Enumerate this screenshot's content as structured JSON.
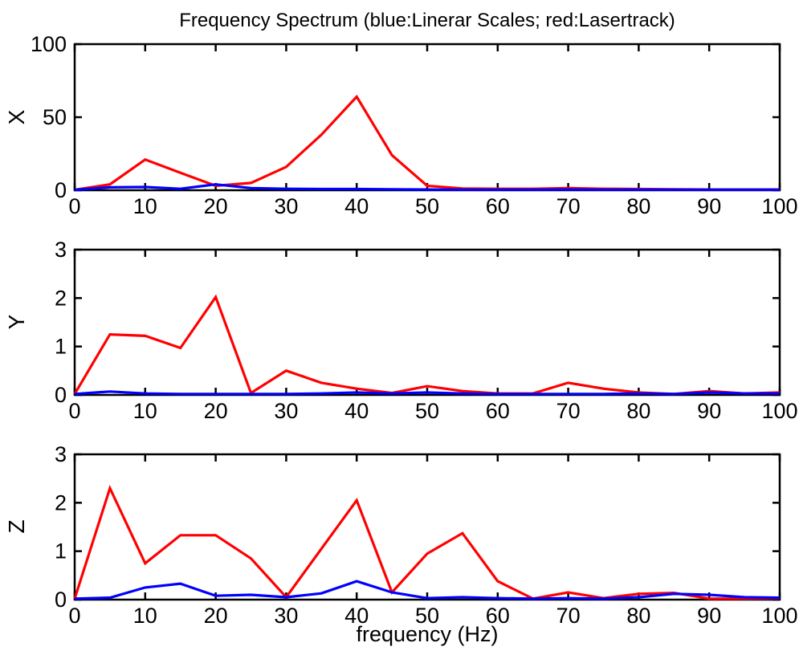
{
  "figure": {
    "background": "#ffffff",
    "axis_color": "#000000"
  },
  "chart_data": {
    "type": "line",
    "title": "Frequency Spectrum (blue:Linerar Scales; red:Lasertrack)",
    "xlabel": "frequency (Hz)",
    "xlim": [
      0,
      100
    ],
    "xticks": [
      0,
      10,
      20,
      30,
      40,
      50,
      60,
      70,
      80,
      90,
      100
    ],
    "x": [
      0,
      5,
      10,
      15,
      20,
      25,
      30,
      35,
      40,
      45,
      50,
      55,
      60,
      65,
      70,
      75,
      80,
      85,
      90,
      95,
      100
    ],
    "grid": false,
    "legend_position": "none (encoded in title: blue = Linerar Scales, red = Lasertrack)",
    "colors": {
      "lasertrack_red": "#ff0000",
      "linerar_scales_blue": "#0000ff"
    },
    "subplots": [
      {
        "ylabel": "X",
        "ylim": [
          0,
          100
        ],
        "yticks": [
          0,
          50,
          100
        ],
        "series": [
          {
            "name": "Lasertrack",
            "color": "#ff0000",
            "values": [
              0.3,
              4,
              21,
              12,
              3,
              5,
              16,
              38,
              64,
              24,
              3,
              1.2,
              1,
              1,
              1.5,
              1,
              0.8,
              0.6,
              0.5,
              0.5,
              0.5
            ]
          },
          {
            "name": "Linerar Scales",
            "color": "#0000ff",
            "values": [
              0.3,
              2,
              2.2,
              1,
              4,
              1.5,
              1,
              0.8,
              0.8,
              0.6,
              0.5,
              0.4,
              0.4,
              0.4,
              0.5,
              0.4,
              0.4,
              0.4,
              0.4,
              0.4,
              0.4
            ]
          }
        ]
      },
      {
        "ylabel": "Y",
        "ylim": [
          0,
          3
        ],
        "yticks": [
          0,
          1,
          2,
          3
        ],
        "series": [
          {
            "name": "Lasertrack",
            "color": "#ff0000",
            "values": [
              0.02,
              1.25,
              1.22,
              0.97,
              2.02,
              0.04,
              0.5,
              0.25,
              0.13,
              0.04,
              0.18,
              0.08,
              0.03,
              0.03,
              0.25,
              0.13,
              0.05,
              0.02,
              0.08,
              0.03,
              0.05
            ]
          },
          {
            "name": "Linerar Scales",
            "color": "#0000ff",
            "values": [
              0.02,
              0.07,
              0.03,
              0.02,
              0.02,
              0.02,
              0.02,
              0.03,
              0.05,
              0.03,
              0.05,
              0.03,
              0.02,
              0.02,
              0.02,
              0.02,
              0.03,
              0.02,
              0.05,
              0.03,
              0.03
            ]
          }
        ]
      },
      {
        "ylabel": "Z",
        "ylim": [
          0,
          3
        ],
        "yticks": [
          0,
          1,
          2,
          3
        ],
        "series": [
          {
            "name": "Lasertrack",
            "color": "#ff0000",
            "values": [
              0.02,
              2.3,
              0.75,
              1.33,
              1.33,
              0.85,
              0.05,
              1.05,
              2.05,
              0.15,
              0.95,
              1.37,
              0.38,
              0.02,
              0.15,
              0.03,
              0.12,
              0.14,
              0.02,
              0.02,
              0.03
            ]
          },
          {
            "name": "Linerar Scales",
            "color": "#0000ff",
            "values": [
              0.02,
              0.04,
              0.25,
              0.33,
              0.08,
              0.1,
              0.05,
              0.13,
              0.38,
              0.15,
              0.03,
              0.05,
              0.03,
              0.02,
              0.03,
              0.02,
              0.05,
              0.12,
              0.1,
              0.05,
              0.04
            ]
          }
        ]
      }
    ]
  }
}
